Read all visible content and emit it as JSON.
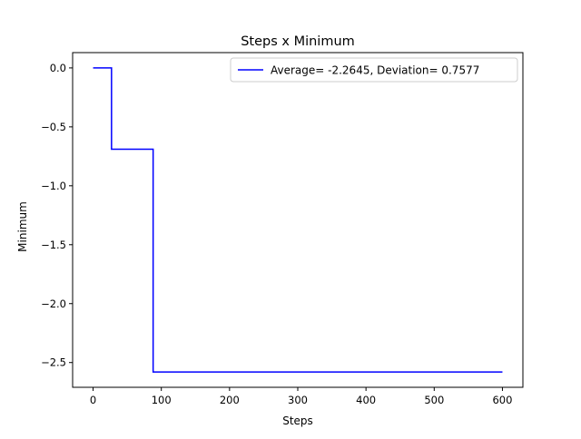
{
  "chart_data": {
    "type": "line",
    "title": "Steps x Minimum",
    "xlabel": "Steps",
    "ylabel": "Minimum",
    "xlim": [
      -30,
      630
    ],
    "ylim": [
      -2.71,
      0.13
    ],
    "xticks": [
      0,
      100,
      200,
      300,
      400,
      500,
      600
    ],
    "xtick_labels": [
      "0",
      "100",
      "200",
      "300",
      "400",
      "500",
      "600"
    ],
    "yticks": [
      0.0,
      -0.5,
      -1.0,
      -1.5,
      -2.0,
      -2.5
    ],
    "ytick_labels": [
      "0.0",
      "−0.5",
      "−1.0",
      "−1.5",
      "−2.0",
      "−2.5"
    ],
    "grid": false,
    "legend_position": "top-right",
    "series": [
      {
        "name": "Average= -2.2645, Deviation= 0.7577",
        "color": "#0000ff",
        "x": [
          0,
          27,
          27,
          88,
          88,
          600
        ],
        "y": [
          0.0,
          0.0,
          -0.69,
          -0.69,
          -2.58,
          -2.58
        ]
      }
    ]
  }
}
